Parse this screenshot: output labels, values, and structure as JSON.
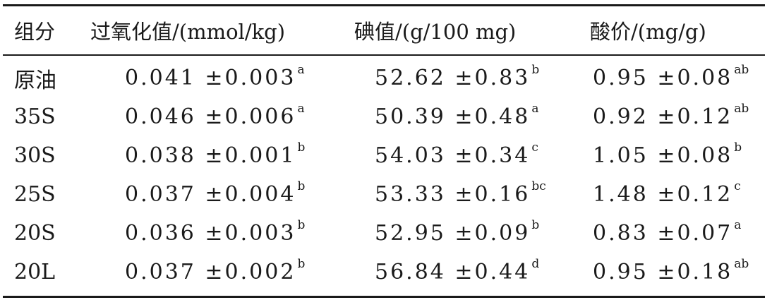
{
  "table": {
    "headers": [
      "组分",
      "过氧化值/(mmol/kg)",
      "碘值/(g/100 mg)",
      "酸价/(mg/g)"
    ],
    "rows": [
      {
        "group": "原油",
        "peroxide": "0.041 ±0.003",
        "peroxide_sup": "a",
        "iodine": "52.62 ±0.83",
        "iodine_sup": "b",
        "acid": "0.95 ±0.08",
        "acid_sup": "ab"
      },
      {
        "group": "35S",
        "peroxide": "0.046 ±0.006",
        "peroxide_sup": "a",
        "iodine": "50.39 ±0.48",
        "iodine_sup": "a",
        "acid": "0.92 ±0.12",
        "acid_sup": "ab"
      },
      {
        "group": "30S",
        "peroxide": "0.038 ±0.001",
        "peroxide_sup": "b",
        "iodine": "54.03 ±0.34",
        "iodine_sup": "c",
        "acid": "1.05 ±0.08",
        "acid_sup": "b"
      },
      {
        "group": "25S",
        "peroxide": "0.037 ±0.004",
        "peroxide_sup": "b",
        "iodine": "53.33 ±0.16",
        "iodine_sup": "bc",
        "acid": "1.48 ±0.12",
        "acid_sup": "c"
      },
      {
        "group": "20S",
        "peroxide": "0.036 ±0.003",
        "peroxide_sup": "b",
        "iodine": "52.95 ±0.09",
        "iodine_sup": "b",
        "acid": "0.83 ±0.07",
        "acid_sup": "a"
      },
      {
        "group": "20L",
        "peroxide": "0.037 ±0.002",
        "peroxide_sup": "b",
        "iodine": "56.84 ±0.44",
        "iodine_sup": "d",
        "acid": "0.95 ±0.18",
        "acid_sup": "ab"
      }
    ]
  }
}
